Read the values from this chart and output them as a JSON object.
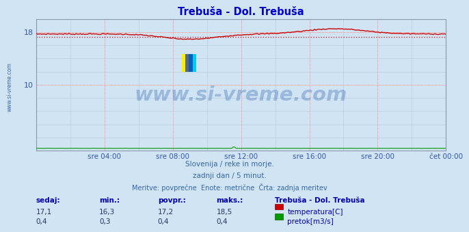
{
  "title": "Trebuša - Dol. Trebuša",
  "title_color": "#0000cc",
  "bg_color": "#d0e4f4",
  "plot_bg_color": "#d0e4f4",
  "grid_color_major": "#ffaaaa",
  "grid_color_minor": "#b8cede",
  "ylim": [
    0,
    20
  ],
  "xlabel_color": "#3355aa",
  "xtick_positions": [
    4,
    8,
    12,
    16,
    20,
    24
  ],
  "xtick_labels": [
    "sre 04:00",
    "sre 08:00",
    "sre 12:00",
    "sre 16:00",
    "sre 20:00",
    "čet 00:00"
  ],
  "ytick_labels": {
    "10": 10,
    "18": 18
  },
  "temp_color": "#cc0000",
  "flow_color": "#009900",
  "avg_line_color": "#cc0000",
  "temp_avg": 17.2,
  "temp_min": 16.3,
  "temp_max": 18.5,
  "temp_current": 17.1,
  "flow_avg": 0.4,
  "flow_min": 0.3,
  "flow_max": 0.4,
  "flow_current": 0.4,
  "flow_scale_max": 0.6,
  "watermark_text": "www.si-vreme.com",
  "watermark_color": "#2255aa",
  "watermark_alpha": 0.3,
  "subtitle1": "Slovenija / reke in morje.",
  "subtitle2": "zadnji dan / 5 minut.",
  "subtitle3": "Meritve: povprečne  Enote: metrične  Črta: zadnja meritev",
  "subtitle_color": "#3366aa",
  "legend_title": "Trebuša - Dol. Trebuša",
  "legend_color": "#0000aa",
  "stat_header": [
    "sedaj:",
    "min.:",
    "povpr.:",
    "maks.:"
  ],
  "stat_temp": [
    "17,1",
    "16,3",
    "17,2",
    "18,5"
  ],
  "stat_flow": [
    "0,4",
    "0,3",
    "0,4",
    "0,4"
  ],
  "n_points": 288,
  "left_label": "www.si-vreme.com",
  "left_label_color": "#3366aa",
  "spine_color": "#8899aa"
}
